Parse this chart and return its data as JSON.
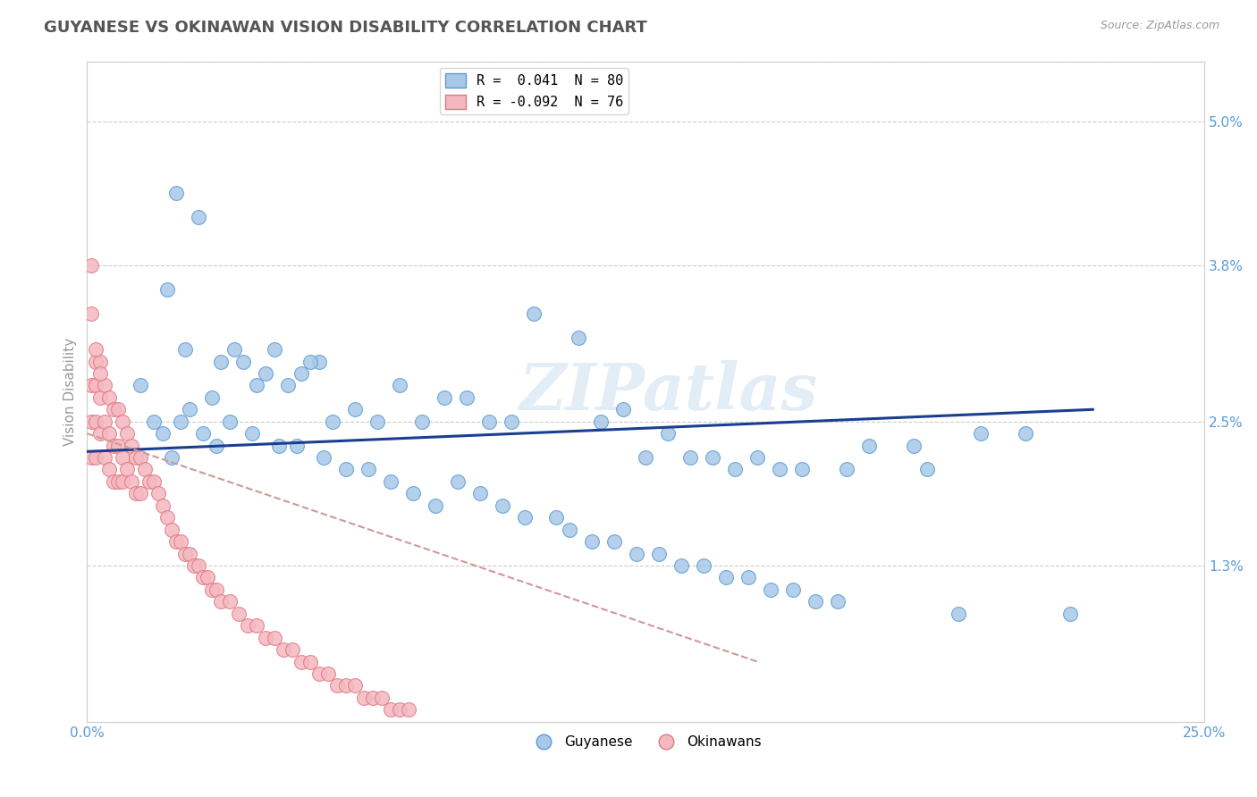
{
  "title": "GUYANESE VS OKINAWAN VISION DISABILITY CORRELATION CHART",
  "source": "Source: ZipAtlas.com",
  "ylabel": "Vision Disability",
  "xlim": [
    0.0,
    0.25
  ],
  "ylim": [
    0.0,
    0.055
  ],
  "yticks_right": [
    0.013,
    0.025,
    0.038,
    0.05
  ],
  "ytick_labels_right": [
    "1.3%",
    "2.5%",
    "3.8%",
    "5.0%"
  ],
  "blue_color": "#a8c8e8",
  "blue_edge": "#5b9bd5",
  "pink_color": "#f5b8c0",
  "pink_edge": "#e07880",
  "trend_blue_color": "#1a3f8f",
  "trend_pink_color": "#d09898",
  "legend_R1": "R =  0.041",
  "legend_N1": "N = 80",
  "legend_R2": "R = -0.092",
  "legend_N2": "N = 76",
  "watermark": "ZIPatlas",
  "background_color": "#ffffff",
  "grid_color": "#cccccc",
  "title_color": "#555555",
  "axis_label_color": "#5b9bd5",
  "blue_x": [
    0.02,
    0.025,
    0.018,
    0.022,
    0.03,
    0.035,
    0.038,
    0.042,
    0.048,
    0.052,
    0.028,
    0.033,
    0.04,
    0.045,
    0.05,
    0.055,
    0.06,
    0.065,
    0.07,
    0.075,
    0.08,
    0.085,
    0.09,
    0.095,
    0.1,
    0.11,
    0.115,
    0.12,
    0.125,
    0.13,
    0.135,
    0.14,
    0.145,
    0.15,
    0.155,
    0.16,
    0.17,
    0.175,
    0.185,
    0.2,
    0.21,
    0.22,
    0.012,
    0.015,
    0.017,
    0.019,
    0.021,
    0.023,
    0.026,
    0.029,
    0.032,
    0.037,
    0.043,
    0.047,
    0.053,
    0.058,
    0.063,
    0.068,
    0.073,
    0.078,
    0.083,
    0.088,
    0.093,
    0.098,
    0.105,
    0.108,
    0.113,
    0.118,
    0.123,
    0.128,
    0.133,
    0.138,
    0.143,
    0.148,
    0.153,
    0.158,
    0.163,
    0.168,
    0.188,
    0.195
  ],
  "blue_y": [
    0.044,
    0.042,
    0.036,
    0.031,
    0.03,
    0.03,
    0.028,
    0.031,
    0.029,
    0.03,
    0.027,
    0.031,
    0.029,
    0.028,
    0.03,
    0.025,
    0.026,
    0.025,
    0.028,
    0.025,
    0.027,
    0.027,
    0.025,
    0.025,
    0.034,
    0.032,
    0.025,
    0.026,
    0.022,
    0.024,
    0.022,
    0.022,
    0.021,
    0.022,
    0.021,
    0.021,
    0.021,
    0.023,
    0.023,
    0.024,
    0.024,
    0.009,
    0.028,
    0.025,
    0.024,
    0.022,
    0.025,
    0.026,
    0.024,
    0.023,
    0.025,
    0.024,
    0.023,
    0.023,
    0.022,
    0.021,
    0.021,
    0.02,
    0.019,
    0.018,
    0.02,
    0.019,
    0.018,
    0.017,
    0.017,
    0.016,
    0.015,
    0.015,
    0.014,
    0.014,
    0.013,
    0.013,
    0.012,
    0.012,
    0.011,
    0.011,
    0.01,
    0.01,
    0.021,
    0.009
  ],
  "pink_x": [
    0.001,
    0.001,
    0.001,
    0.001,
    0.002,
    0.002,
    0.002,
    0.002,
    0.003,
    0.003,
    0.003,
    0.004,
    0.004,
    0.004,
    0.005,
    0.005,
    0.005,
    0.006,
    0.006,
    0.006,
    0.007,
    0.007,
    0.007,
    0.008,
    0.008,
    0.008,
    0.009,
    0.009,
    0.01,
    0.01,
    0.011,
    0.011,
    0.012,
    0.012,
    0.013,
    0.014,
    0.015,
    0.016,
    0.017,
    0.018,
    0.019,
    0.02,
    0.021,
    0.022,
    0.023,
    0.024,
    0.025,
    0.026,
    0.027,
    0.028,
    0.029,
    0.03,
    0.032,
    0.034,
    0.036,
    0.038,
    0.04,
    0.042,
    0.044,
    0.046,
    0.048,
    0.05,
    0.052,
    0.054,
    0.056,
    0.058,
    0.06,
    0.062,
    0.064,
    0.066,
    0.068,
    0.07,
    0.072,
    0.001,
    0.002,
    0.003
  ],
  "pink_y": [
    0.038,
    0.028,
    0.025,
    0.022,
    0.03,
    0.028,
    0.025,
    0.022,
    0.03,
    0.027,
    0.024,
    0.028,
    0.025,
    0.022,
    0.027,
    0.024,
    0.021,
    0.026,
    0.023,
    0.02,
    0.026,
    0.023,
    0.02,
    0.025,
    0.022,
    0.02,
    0.024,
    0.021,
    0.023,
    0.02,
    0.022,
    0.019,
    0.022,
    0.019,
    0.021,
    0.02,
    0.02,
    0.019,
    0.018,
    0.017,
    0.016,
    0.015,
    0.015,
    0.014,
    0.014,
    0.013,
    0.013,
    0.012,
    0.012,
    0.011,
    0.011,
    0.01,
    0.01,
    0.009,
    0.008,
    0.008,
    0.007,
    0.007,
    0.006,
    0.006,
    0.005,
    0.005,
    0.004,
    0.004,
    0.003,
    0.003,
    0.003,
    0.002,
    0.002,
    0.002,
    0.001,
    0.001,
    0.001,
    0.034,
    0.031,
    0.029
  ],
  "blue_trend_x": [
    0.0,
    0.225
  ],
  "blue_trend_y": [
    0.0225,
    0.026
  ],
  "pink_trend_x": [
    0.0,
    0.15
  ],
  "pink_trend_y": [
    0.024,
    0.005
  ]
}
